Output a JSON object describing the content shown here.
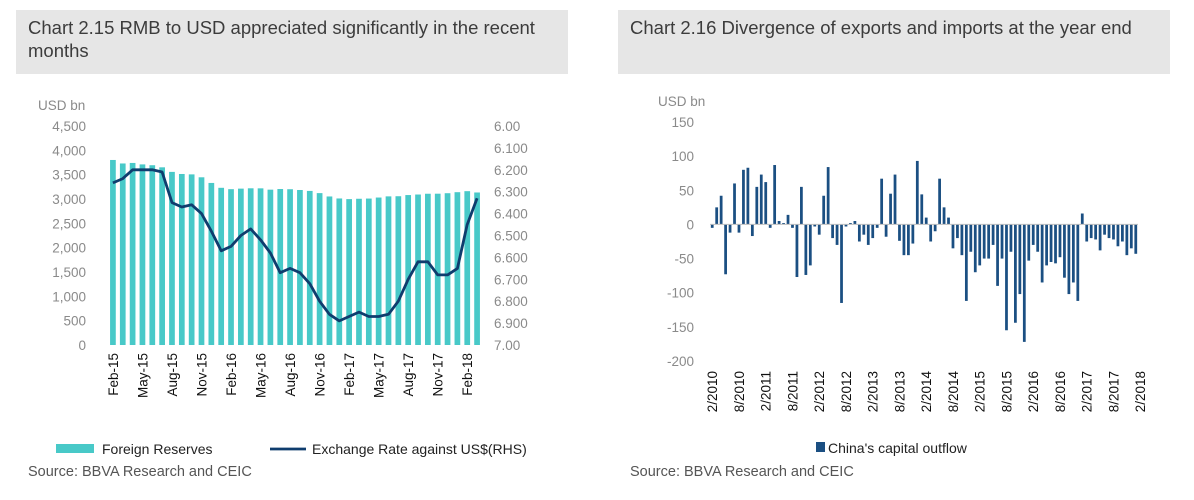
{
  "left": {
    "title": "Chart 2.15 RMB  to USD appreciated  significantly  in  the recent months",
    "source": "Source: BBVA Research and CEIC"
  },
  "right": {
    "title": "Chart 2.16 Divergence  of exports and  imports  at the year end",
    "source": "Source: BBVA Research and CEIC"
  },
  "colors": {
    "reserves": "#48c9c8",
    "fx_line": "#0f3d6e",
    "outflow": "#1b4f82",
    "title_bg": "#e6e6e6"
  },
  "chart_data": [
    {
      "type": "bar",
      "unit_label": "USD bn",
      "y_ticks": [
        "4,500",
        "4,000",
        "3,500",
        "3,000",
        "2,500",
        "2,000",
        "1,500",
        "1,000",
        "500",
        "0"
      ],
      "ylim": [
        0,
        4500
      ],
      "y2_ticks": [
        "6.00",
        "6.100",
        "6.200",
        "6.300",
        "6.400",
        "6.500",
        "6.600",
        "6.700",
        "6.800",
        "6.900",
        "7.00"
      ],
      "y2lim": [
        6.0,
        7.0
      ],
      "y2_inverted": true,
      "x_ticks": [
        "Feb-15",
        "May-15",
        "Aug-15",
        "Nov-15",
        "Feb-16",
        "May-16",
        "Aug-16",
        "Nov-16",
        "Feb-17",
        "May-17",
        "Aug-17",
        "Nov-17",
        "Feb-18"
      ],
      "series": [
        {
          "name": "Foreign Reserves",
          "type": "bar",
          "values": [
            3802,
            3730,
            3741,
            3711,
            3694,
            3651,
            3557,
            3514,
            3506,
            3446,
            3330,
            3230,
            3202,
            3213,
            3220,
            3219,
            3192,
            3205,
            3201,
            3185,
            3166,
            3121,
            3052,
            3011,
            2998,
            3005,
            3009,
            3030,
            3054,
            3057,
            3081,
            3092,
            3108,
            3109,
            3119,
            3140,
            3161,
            3134
          ]
        },
        {
          "name": "Exchange Rate against US$(RHS)",
          "type": "line",
          "axis": "right",
          "values": [
            6.26,
            6.24,
            6.2,
            6.2,
            6.2,
            6.21,
            6.35,
            6.37,
            6.36,
            6.4,
            6.48,
            6.57,
            6.55,
            6.5,
            6.47,
            6.52,
            6.58,
            6.67,
            6.65,
            6.67,
            6.72,
            6.8,
            6.86,
            6.89,
            6.87,
            6.85,
            6.87,
            6.87,
            6.86,
            6.8,
            6.7,
            6.62,
            6.62,
            6.68,
            6.68,
            6.65,
            6.45,
            6.33
          ]
        }
      ]
    },
    {
      "type": "bar",
      "unit_label": "USD bn",
      "y_ticks": [
        "150",
        "100",
        "50",
        "0",
        "-50",
        "-100",
        "-150",
        "-200"
      ],
      "ylim": [
        -200,
        150
      ],
      "x_ticks": [
        "2/2010",
        "8/2010",
        "2/2011",
        "8/2011",
        "2/2012",
        "8/2012",
        "2/2013",
        "8/2013",
        "2/2014",
        "8/2014",
        "2/2015",
        "8/2015",
        "2/2016",
        "8/2016",
        "2/2017",
        "8/2017",
        "2/2018"
      ],
      "series": [
        {
          "name": "China's capital outflow",
          "values": [
            -5,
            25,
            42,
            -73,
            -12,
            60,
            -12,
            80,
            83,
            -17,
            55,
            73,
            62,
            -5,
            87,
            5,
            2,
            14,
            -5,
            -77,
            55,
            -74,
            -60,
            -3,
            -15,
            42,
            84,
            -20,
            -30,
            -115,
            -3,
            2,
            5,
            -25,
            -15,
            -30,
            -20,
            -5,
            67,
            -18,
            45,
            73,
            -24,
            -45,
            -45,
            -28,
            93,
            44,
            10,
            -25,
            -10,
            67,
            25,
            10,
            -35,
            -20,
            -45,
            -112,
            -40,
            -70,
            -60,
            -50,
            -50,
            -30,
            -90,
            -50,
            -155,
            -40,
            -144,
            -102,
            -172,
            -53,
            -30,
            -40,
            -85,
            -60,
            -55,
            -57,
            -48,
            -78,
            -102,
            -85,
            -112,
            16,
            -25,
            -20,
            -22,
            -38,
            -15,
            -20,
            -22,
            -32,
            -25,
            -45,
            -35,
            -43
          ]
        }
      ]
    }
  ]
}
